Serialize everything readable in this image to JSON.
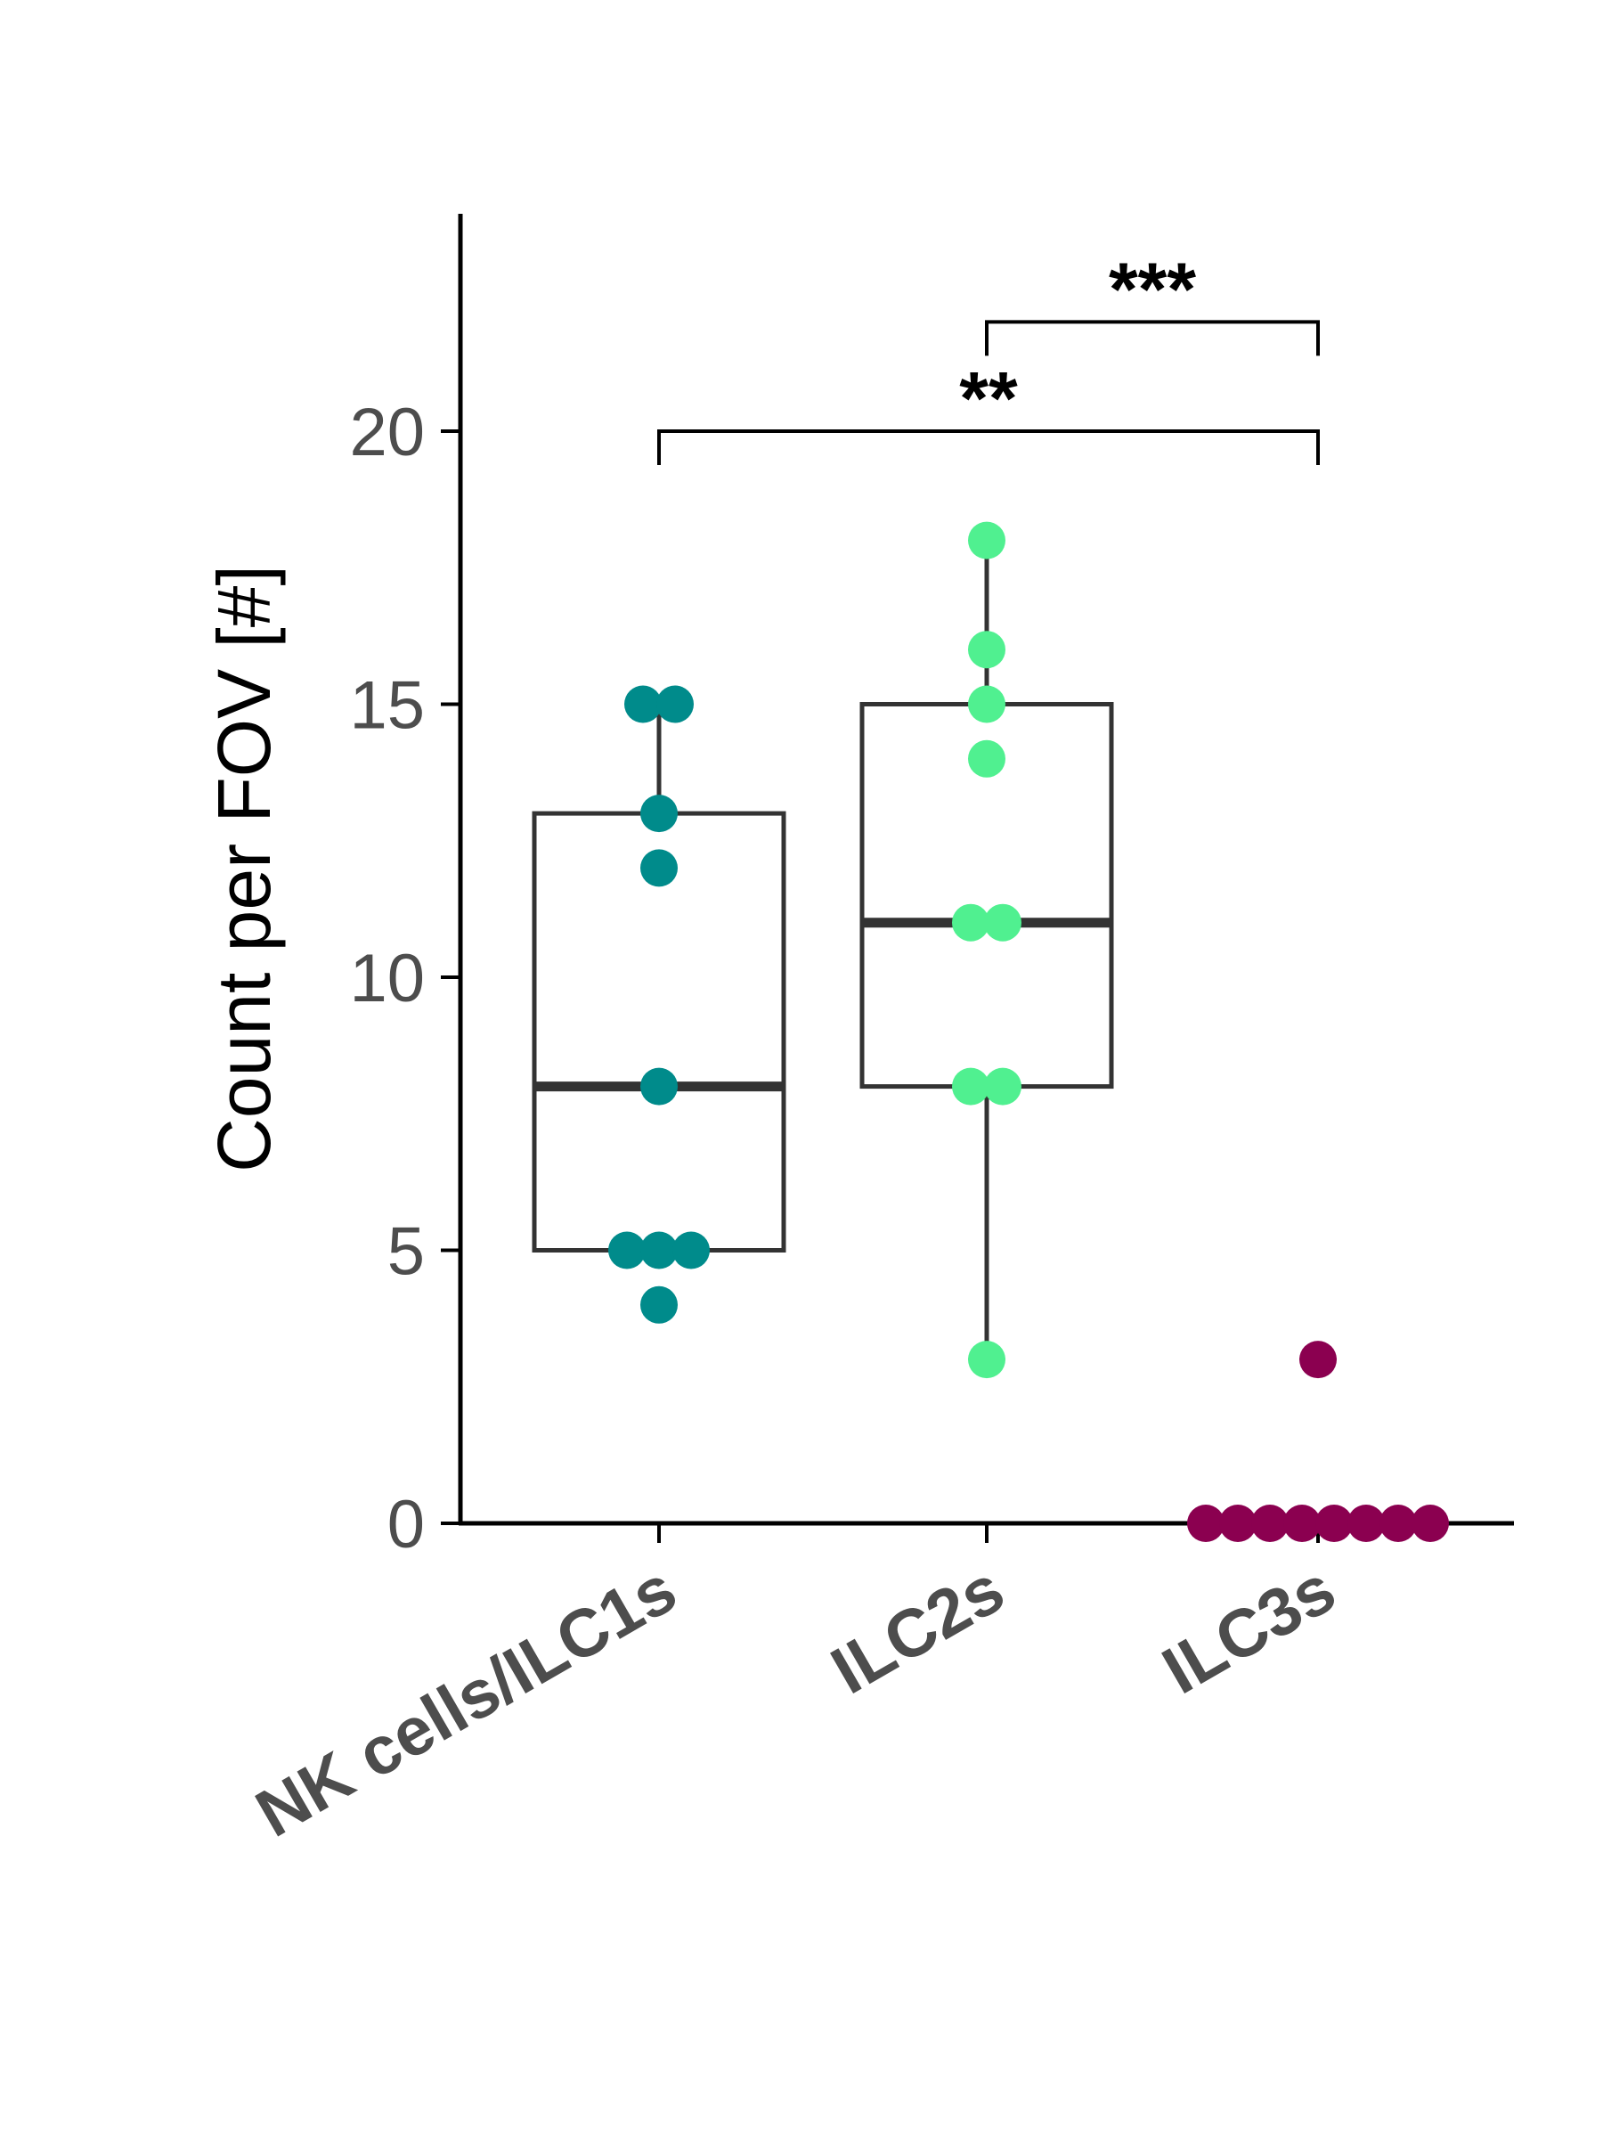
{
  "chart_data": {
    "type": "box",
    "ylabel": "Count per FOV [#]",
    "ylim": [
      0,
      24
    ],
    "yticks": [
      0,
      5,
      10,
      15,
      20
    ],
    "categories": [
      "NK cells/ILC1s",
      "ILC2s",
      "ILC3s"
    ],
    "groups": [
      {
        "name": "NK cells/ILC1s",
        "color": "#008B8B",
        "box": {
          "q1": 5,
          "median": 8,
          "q3": 13,
          "whisker_low": 5,
          "whisker_high": 15
        },
        "points": [
          15,
          15,
          13,
          12,
          8,
          5,
          5,
          5,
          4
        ]
      },
      {
        "name": "ILC2s",
        "color": "#50F090",
        "box": {
          "q1": 8,
          "median": 11,
          "q3": 15,
          "whisker_low": 3,
          "whisker_high": 18
        },
        "points": [
          18,
          16,
          15,
          14,
          11,
          11,
          8,
          8,
          3
        ]
      },
      {
        "name": "ILC3s",
        "color": "#8B0050",
        "box": {
          "q1": 0,
          "median": 0,
          "q3": 0,
          "whisker_low": 0,
          "whisker_high": 0
        },
        "points": [
          3,
          0,
          0,
          0,
          0,
          0,
          0,
          0,
          0
        ]
      }
    ],
    "significance": [
      {
        "from": "NK cells/ILC1s",
        "to": "ILC3s",
        "label": "**",
        "y": 20
      },
      {
        "from": "ILC2s",
        "to": "ILC3s",
        "label": "***",
        "y": 22
      }
    ],
    "colors": {
      "axis": "#000000",
      "box_line": "#333333",
      "tick_text": "#4d4d4d"
    }
  }
}
